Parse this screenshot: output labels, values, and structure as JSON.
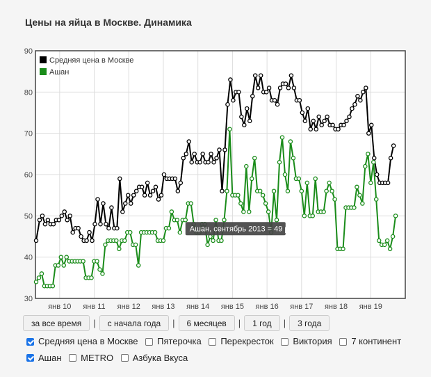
{
  "page": {
    "title": "Цены на яйца в Москве. Динамика"
  },
  "colors": {
    "avg": "#000000",
    "auchan": "#1a8c1a",
    "grid": "#dddddd",
    "frame": "#444444"
  },
  "chart_data": {
    "type": "line",
    "ylim": [
      30,
      90
    ],
    "yticks": [
      30,
      40,
      50,
      60,
      70,
      80,
      90
    ],
    "xlim": [
      2009.3,
      2020.0
    ],
    "xticks": [
      {
        "x": 2010,
        "label": "янв 10"
      },
      {
        "x": 2011,
        "label": "янв 11"
      },
      {
        "x": 2012,
        "label": "янв 12"
      },
      {
        "x": 2013,
        "label": "янв 13"
      },
      {
        "x": 2014,
        "label": "янв 14"
      },
      {
        "x": 2015,
        "label": "янв 15"
      },
      {
        "x": 2016,
        "label": "янв 16"
      },
      {
        "x": 2017,
        "label": "янв 17"
      },
      {
        "x": 2018,
        "label": "янв 18"
      },
      {
        "x": 2019,
        "label": "янв 19"
      }
    ],
    "legend_position": "top-left",
    "grid": true,
    "series": [
      {
        "name": "Средняя цена в Москве",
        "color": "#000000",
        "points": [
          [
            2009.32,
            44
          ],
          [
            2009.42,
            49
          ],
          [
            2009.5,
            50
          ],
          [
            2009.58,
            48
          ],
          [
            2009.66,
            49
          ],
          [
            2009.74,
            48
          ],
          [
            2009.82,
            48
          ],
          [
            2009.9,
            49
          ],
          [
            2009.98,
            49
          ],
          [
            2010.06,
            50
          ],
          [
            2010.14,
            51
          ],
          [
            2010.22,
            49
          ],
          [
            2010.3,
            50
          ],
          [
            2010.38,
            46
          ],
          [
            2010.46,
            47
          ],
          [
            2010.54,
            47
          ],
          [
            2010.62,
            45
          ],
          [
            2010.7,
            44
          ],
          [
            2010.78,
            44
          ],
          [
            2010.86,
            46
          ],
          [
            2010.94,
            44
          ],
          [
            2011.02,
            48
          ],
          [
            2011.1,
            54
          ],
          [
            2011.18,
            48
          ],
          [
            2011.26,
            53
          ],
          [
            2011.34,
            48
          ],
          [
            2011.42,
            47
          ],
          [
            2011.5,
            52
          ],
          [
            2011.58,
            47
          ],
          [
            2011.66,
            47
          ],
          [
            2011.74,
            59
          ],
          [
            2011.82,
            51
          ],
          [
            2011.9,
            53
          ],
          [
            2011.98,
            55
          ],
          [
            2012.06,
            53
          ],
          [
            2012.14,
            55
          ],
          [
            2012.22,
            56
          ],
          [
            2012.3,
            57
          ],
          [
            2012.38,
            57
          ],
          [
            2012.46,
            55
          ],
          [
            2012.54,
            58
          ],
          [
            2012.62,
            55
          ],
          [
            2012.7,
            56
          ],
          [
            2012.78,
            57
          ],
          [
            2012.86,
            54
          ],
          [
            2012.94,
            55
          ],
          [
            2013.02,
            60
          ],
          [
            2013.1,
            59
          ],
          [
            2013.18,
            59
          ],
          [
            2013.26,
            59
          ],
          [
            2013.34,
            59
          ],
          [
            2013.42,
            56
          ],
          [
            2013.5,
            58
          ],
          [
            2013.58,
            64
          ],
          [
            2013.66,
            65
          ],
          [
            2013.74,
            68
          ],
          [
            2013.82,
            63
          ],
          [
            2013.9,
            65
          ],
          [
            2013.98,
            63
          ],
          [
            2014.06,
            63
          ],
          [
            2014.14,
            65
          ],
          [
            2014.22,
            63
          ],
          [
            2014.3,
            63
          ],
          [
            2014.38,
            65
          ],
          [
            2014.46,
            63
          ],
          [
            2014.54,
            64
          ],
          [
            2014.62,
            66
          ],
          [
            2014.7,
            56
          ],
          [
            2014.78,
            66
          ],
          [
            2014.86,
            77
          ],
          [
            2014.94,
            83
          ],
          [
            2015.02,
            78
          ],
          [
            2015.1,
            80
          ],
          [
            2015.18,
            80
          ],
          [
            2015.26,
            74
          ],
          [
            2015.34,
            72
          ],
          [
            2015.42,
            76
          ],
          [
            2015.5,
            73
          ],
          [
            2015.58,
            79
          ],
          [
            2015.66,
            84
          ],
          [
            2015.74,
            81
          ],
          [
            2015.82,
            84
          ],
          [
            2015.9,
            80
          ],
          [
            2015.98,
            80
          ],
          [
            2016.06,
            81
          ],
          [
            2016.14,
            78
          ],
          [
            2016.22,
            78
          ],
          [
            2016.3,
            77
          ],
          [
            2016.38,
            81
          ],
          [
            2016.46,
            82
          ],
          [
            2016.54,
            82
          ],
          [
            2016.62,
            81
          ],
          [
            2016.7,
            84
          ],
          [
            2016.78,
            81
          ],
          [
            2016.86,
            78
          ],
          [
            2016.94,
            78
          ],
          [
            2017.02,
            75
          ],
          [
            2017.1,
            73
          ],
          [
            2017.18,
            76
          ],
          [
            2017.26,
            71
          ],
          [
            2017.34,
            73
          ],
          [
            2017.42,
            71
          ],
          [
            2017.5,
            74
          ],
          [
            2017.58,
            72
          ],
          [
            2017.66,
            73
          ],
          [
            2017.74,
            74
          ],
          [
            2017.82,
            72
          ],
          [
            2017.9,
            72
          ],
          [
            2017.98,
            71
          ],
          [
            2018.06,
            71
          ],
          [
            2018.14,
            72
          ],
          [
            2018.22,
            72
          ],
          [
            2018.3,
            73
          ],
          [
            2018.38,
            74
          ],
          [
            2018.46,
            76
          ],
          [
            2018.54,
            77
          ],
          [
            2018.62,
            79
          ],
          [
            2018.7,
            78
          ],
          [
            2018.78,
            80
          ],
          [
            2018.86,
            81
          ],
          [
            2018.94,
            70
          ],
          [
            2019.02,
            72
          ],
          [
            2019.1,
            64
          ],
          [
            2019.18,
            60
          ],
          [
            2019.26,
            58
          ],
          [
            2019.34,
            58
          ],
          [
            2019.42,
            58
          ],
          [
            2019.5,
            58
          ],
          [
            2019.58,
            64
          ],
          [
            2019.66,
            67
          ]
        ]
      },
      {
        "name": "Ашан",
        "color": "#1a8c1a",
        "points": [
          [
            2009.32,
            34
          ],
          [
            2009.4,
            35
          ],
          [
            2009.48,
            36
          ],
          [
            2009.56,
            33
          ],
          [
            2009.64,
            33
          ],
          [
            2009.72,
            33
          ],
          [
            2009.8,
            33
          ],
          [
            2009.88,
            38
          ],
          [
            2009.96,
            38
          ],
          [
            2010.04,
            40
          ],
          [
            2010.12,
            38
          ],
          [
            2010.2,
            40
          ],
          [
            2010.28,
            39
          ],
          [
            2010.36,
            39
          ],
          [
            2010.44,
            39
          ],
          [
            2010.52,
            39
          ],
          [
            2010.6,
            39
          ],
          [
            2010.68,
            39
          ],
          [
            2010.76,
            35
          ],
          [
            2010.84,
            35
          ],
          [
            2010.92,
            35
          ],
          [
            2011.0,
            39
          ],
          [
            2011.08,
            39
          ],
          [
            2011.16,
            37
          ],
          [
            2011.24,
            36
          ],
          [
            2011.32,
            43
          ],
          [
            2011.4,
            44
          ],
          [
            2011.48,
            44
          ],
          [
            2011.56,
            44
          ],
          [
            2011.64,
            44
          ],
          [
            2011.72,
            42
          ],
          [
            2011.8,
            44
          ],
          [
            2011.88,
            44
          ],
          [
            2011.96,
            46
          ],
          [
            2012.04,
            46
          ],
          [
            2012.12,
            43
          ],
          [
            2012.2,
            43
          ],
          [
            2012.28,
            38
          ],
          [
            2012.36,
            46
          ],
          [
            2012.44,
            46
          ],
          [
            2012.52,
            46
          ],
          [
            2012.6,
            46
          ],
          [
            2012.68,
            46
          ],
          [
            2012.76,
            46
          ],
          [
            2012.84,
            44
          ],
          [
            2012.92,
            44
          ],
          [
            2013.0,
            44
          ],
          [
            2013.08,
            47
          ],
          [
            2013.16,
            47
          ],
          [
            2013.24,
            51
          ],
          [
            2013.32,
            49
          ],
          [
            2013.4,
            49
          ],
          [
            2013.48,
            46
          ],
          [
            2013.56,
            49
          ],
          [
            2013.64,
            49
          ],
          [
            2013.72,
            53
          ],
          [
            2013.8,
            53
          ],
          [
            2013.88,
            48
          ],
          [
            2013.96,
            46
          ],
          [
            2014.04,
            46
          ],
          [
            2014.12,
            48
          ],
          [
            2014.2,
            48
          ],
          [
            2014.28,
            43
          ],
          [
            2014.36,
            45
          ],
          [
            2014.44,
            44
          ],
          [
            2014.52,
            49
          ],
          [
            2014.6,
            44
          ],
          [
            2014.68,
            44
          ],
          [
            2014.76,
            49
          ],
          [
            2014.84,
            56
          ],
          [
            2014.92,
            71
          ],
          [
            2015.0,
            55
          ],
          [
            2015.08,
            55
          ],
          [
            2015.16,
            55
          ],
          [
            2015.24,
            53
          ],
          [
            2015.32,
            51
          ],
          [
            2015.4,
            62
          ],
          [
            2015.48,
            51
          ],
          [
            2015.56,
            59
          ],
          [
            2015.64,
            64
          ],
          [
            2015.72,
            56
          ],
          [
            2015.8,
            56
          ],
          [
            2015.88,
            55
          ],
          [
            2015.96,
            53
          ],
          [
            2016.04,
            51
          ],
          [
            2016.12,
            46
          ],
          [
            2016.2,
            56
          ],
          [
            2016.28,
            49
          ],
          [
            2016.36,
            63
          ],
          [
            2016.44,
            69
          ],
          [
            2016.52,
            60
          ],
          [
            2016.6,
            56
          ],
          [
            2016.68,
            68
          ],
          [
            2016.76,
            64
          ],
          [
            2016.84,
            59
          ],
          [
            2016.92,
            59
          ],
          [
            2017.0,
            56
          ],
          [
            2017.08,
            50
          ],
          [
            2017.16,
            58
          ],
          [
            2017.24,
            50
          ],
          [
            2017.32,
            50
          ],
          [
            2017.4,
            59
          ],
          [
            2017.48,
            51
          ],
          [
            2017.56,
            51
          ],
          [
            2017.64,
            51
          ],
          [
            2017.72,
            56
          ],
          [
            2017.8,
            58
          ],
          [
            2017.88,
            56
          ],
          [
            2017.96,
            54
          ],
          [
            2018.04,
            42
          ],
          [
            2018.12,
            42
          ],
          [
            2018.2,
            42
          ],
          [
            2018.28,
            52
          ],
          [
            2018.36,
            52
          ],
          [
            2018.44,
            52
          ],
          [
            2018.52,
            52
          ],
          [
            2018.6,
            57
          ],
          [
            2018.68,
            55
          ],
          [
            2018.76,
            53
          ],
          [
            2018.84,
            62
          ],
          [
            2018.92,
            65
          ],
          [
            2019.0,
            58
          ],
          [
            2019.08,
            63
          ],
          [
            2019.16,
            54
          ],
          [
            2019.24,
            44
          ],
          [
            2019.32,
            43
          ],
          [
            2019.4,
            43
          ],
          [
            2019.48,
            44
          ],
          [
            2019.56,
            42
          ],
          [
            2019.64,
            45
          ],
          [
            2019.72,
            50
          ]
        ]
      }
    ],
    "tooltip": {
      "text": "Ашан, сентябрь 2013 = 49 р.",
      "x": 2013.66,
      "y": 49,
      "series": "Ашан"
    }
  },
  "controls": {
    "buttons": [
      "за все время",
      "с начала года",
      "6 месяцев",
      "1 год",
      "3 года"
    ],
    "separator": "|"
  },
  "stores": [
    {
      "label": "Средняя цена в Москве",
      "checked": true
    },
    {
      "label": "Пятерочка",
      "checked": false
    },
    {
      "label": "Перекресток",
      "checked": false
    },
    {
      "label": "Виктория",
      "checked": false
    },
    {
      "label": "7 континент",
      "checked": false
    },
    {
      "label": "Ашан",
      "checked": true
    },
    {
      "label": "METRO",
      "checked": false
    },
    {
      "label": "Азбука Вкуса",
      "checked": false
    }
  ]
}
